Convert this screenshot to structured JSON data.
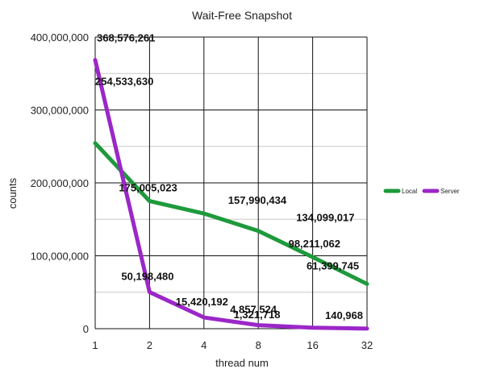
{
  "chart_data": {
    "type": "line",
    "title": "Wait-Free Snapshot",
    "xlabel": "thread num",
    "ylabel": "counts",
    "categories": [
      "1",
      "2",
      "4",
      "8",
      "16",
      "32"
    ],
    "ylim": [
      0,
      400000000
    ],
    "y_ticks": [
      0,
      100000000,
      200000000,
      300000000,
      400000000
    ],
    "y_tick_labels": [
      "0",
      "100,000,000",
      "200,000,000",
      "300,000,000",
      "400,000,000"
    ],
    "grid": true,
    "legend": "right",
    "series": [
      {
        "name": "Local",
        "color": "#1e9a3c",
        "values": [
          254533630,
          175005023,
          157990434,
          134099017,
          98211062,
          61399745
        ],
        "labels": [
          "254,533,630",
          "175,005,023",
          "157,990,434",
          "134,099,017",
          "98,211,062",
          "61,399,745"
        ]
      },
      {
        "name": "Server",
        "color": "#9b27c8",
        "values": [
          368576261,
          50198480,
          15420192,
          4857524,
          1321718,
          140968
        ],
        "labels": [
          "368,576,261",
          "50,198,480",
          "15,420,192",
          "4,857,524",
          "1,321,718",
          "140,968"
        ]
      }
    ]
  }
}
